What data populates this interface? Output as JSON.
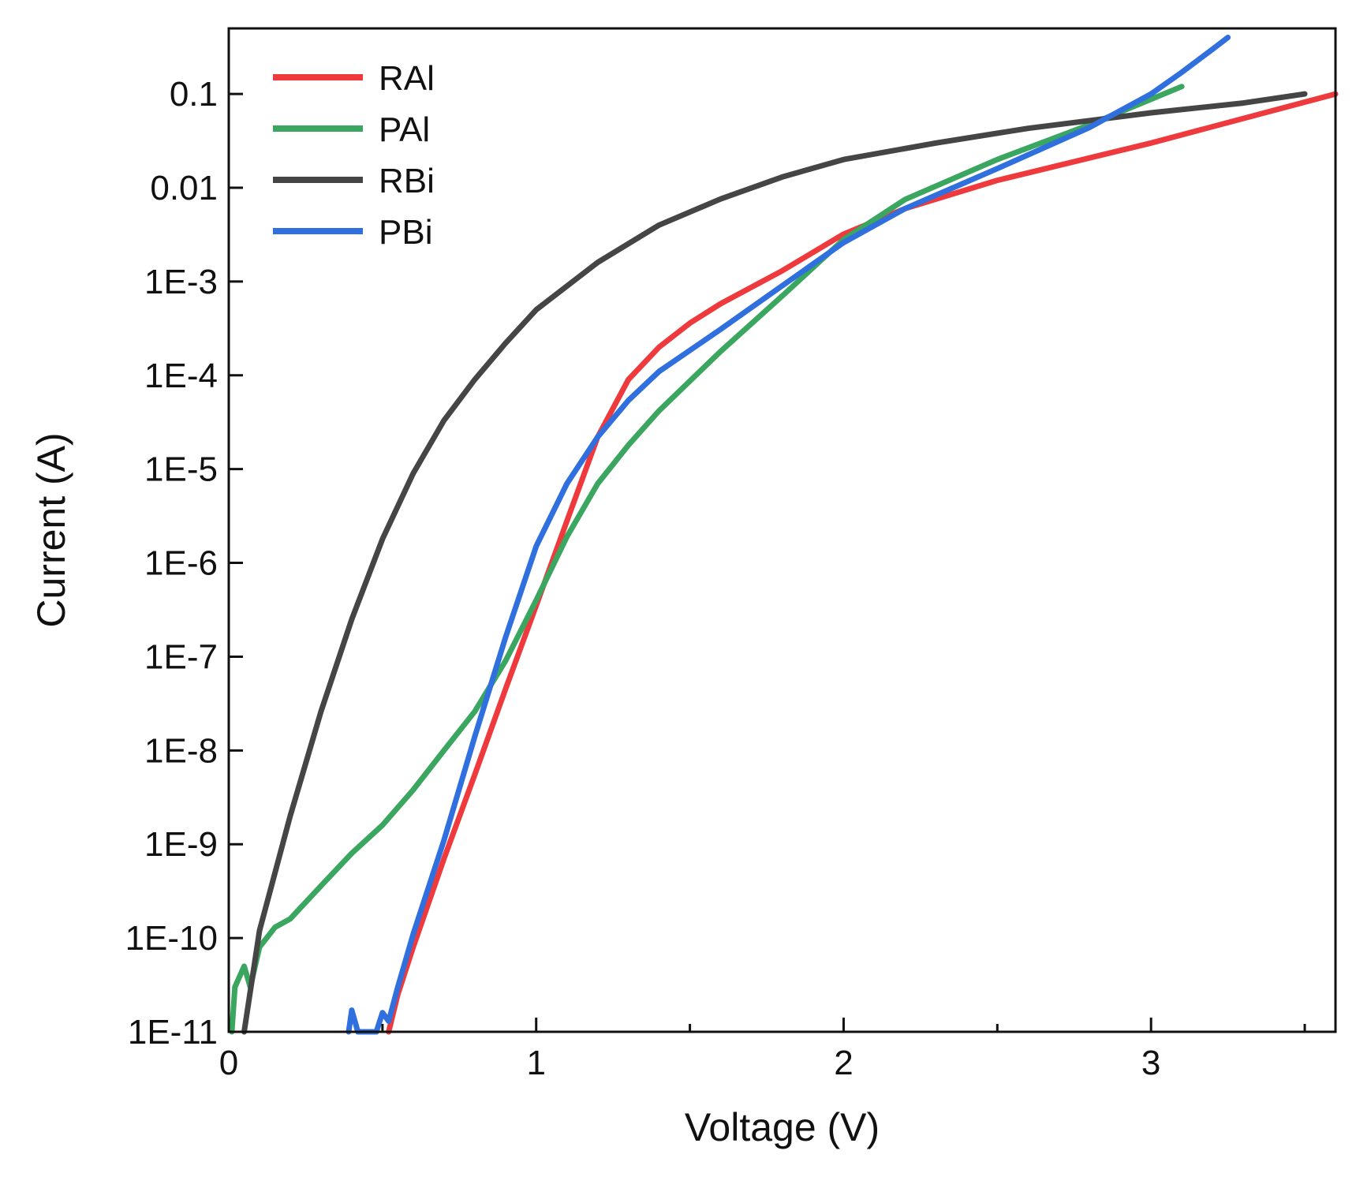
{
  "chart_data": {
    "type": "line",
    "title": "",
    "xlabel": "Voltage (V)",
    "ylabel": "Current (A)",
    "xlim": [
      0,
      3.6
    ],
    "ylim": [
      1e-11,
      0.5
    ],
    "yscale": "log",
    "grid": false,
    "legend_position": "top-left",
    "x_ticks": [
      {
        "value": 0,
        "label": "0"
      },
      {
        "value": 1,
        "label": "1"
      },
      {
        "value": 2,
        "label": "2"
      },
      {
        "value": 3,
        "label": "3"
      }
    ],
    "x_minor_ticks": [
      0.5,
      1.5,
      2.5,
      3.5
    ],
    "y_ticks": [
      {
        "value": 1e-11,
        "label": "1E-11"
      },
      {
        "value": 1e-10,
        "label": "1E-10"
      },
      {
        "value": 1e-09,
        "label": "1E-9"
      },
      {
        "value": 1e-08,
        "label": "1E-8"
      },
      {
        "value": 1e-07,
        "label": "1E-7"
      },
      {
        "value": 1e-06,
        "label": "1E-6"
      },
      {
        "value": 1e-05,
        "label": "1E-5"
      },
      {
        "value": 0.0001,
        "label": "1E-4"
      },
      {
        "value": 0.001,
        "label": "1E-3"
      },
      {
        "value": 0.01,
        "label": "0.01"
      },
      {
        "value": 0.1,
        "label": "0.1"
      }
    ],
    "series": [
      {
        "name": "RAl",
        "color": "#ee3a3c",
        "points": [
          [
            0.52,
            1e-11
          ],
          [
            0.55,
            2.5e-11
          ],
          [
            0.6,
            8e-11
          ],
          [
            0.7,
            7e-10
          ],
          [
            0.8,
            5.5e-09
          ],
          [
            0.9,
            4.5e-08
          ],
          [
            1.0,
            3.5e-07
          ],
          [
            1.1,
            2.8e-06
          ],
          [
            1.2,
            2.2e-05
          ],
          [
            1.3,
            9e-05
          ],
          [
            1.4,
            0.0002
          ],
          [
            1.5,
            0.00036
          ],
          [
            1.6,
            0.00058
          ],
          [
            1.8,
            0.0013
          ],
          [
            2.0,
            0.0032
          ],
          [
            2.2,
            0.006
          ],
          [
            2.5,
            0.012
          ],
          [
            3.0,
            0.03
          ],
          [
            3.6,
            0.1
          ]
        ]
      },
      {
        "name": "PAl",
        "color": "#3aa660",
        "points": [
          [
            0.01,
            1e-11
          ],
          [
            0.02,
            3e-11
          ],
          [
            0.05,
            5e-11
          ],
          [
            0.07,
            3e-11
          ],
          [
            0.1,
            8e-11
          ],
          [
            0.15,
            1.3e-10
          ],
          [
            0.2,
            1.6e-10
          ],
          [
            0.3,
            3.6e-10
          ],
          [
            0.4,
            8e-10
          ],
          [
            0.5,
            1.6e-09
          ],
          [
            0.6,
            3.8e-09
          ],
          [
            0.7,
            1e-08
          ],
          [
            0.8,
            2.6e-08
          ],
          [
            0.9,
            9e-08
          ],
          [
            1.0,
            4e-07
          ],
          [
            1.1,
            1.9e-06
          ],
          [
            1.2,
            7e-06
          ],
          [
            1.3,
            1.8e-05
          ],
          [
            1.4,
            4.2e-05
          ],
          [
            1.6,
            0.00018
          ],
          [
            1.8,
            0.0007
          ],
          [
            2.0,
            0.0028
          ],
          [
            2.2,
            0.0075
          ],
          [
            2.5,
            0.02
          ],
          [
            2.8,
            0.047
          ],
          [
            3.1,
            0.12
          ]
        ]
      },
      {
        "name": "RBi",
        "color": "#454545",
        "points": [
          [
            0.05,
            1e-11
          ],
          [
            0.1,
            1.2e-10
          ],
          [
            0.2,
            2e-09
          ],
          [
            0.3,
            2.6e-08
          ],
          [
            0.4,
            2.5e-07
          ],
          [
            0.5,
            1.8e-06
          ],
          [
            0.6,
            9e-06
          ],
          [
            0.7,
            3.3e-05
          ],
          [
            0.8,
            9e-05
          ],
          [
            0.9,
            0.00022
          ],
          [
            1.0,
            0.0005
          ],
          [
            1.2,
            0.0016
          ],
          [
            1.4,
            0.004
          ],
          [
            1.6,
            0.0076
          ],
          [
            1.8,
            0.013
          ],
          [
            2.0,
            0.02
          ],
          [
            2.3,
            0.03
          ],
          [
            2.6,
            0.043
          ],
          [
            3.0,
            0.063
          ],
          [
            3.3,
            0.08
          ],
          [
            3.5,
            0.1
          ]
        ]
      },
      {
        "name": "PBi",
        "color": "#2f6fde",
        "points": [
          [
            0.39,
            1e-11
          ],
          [
            0.4,
            1.7e-11
          ],
          [
            0.42,
            1e-11
          ],
          [
            0.48,
            1e-11
          ],
          [
            0.5,
            1.6e-11
          ],
          [
            0.52,
            1.3e-11
          ],
          [
            0.55,
            3e-11
          ],
          [
            0.6,
            1.1e-10
          ],
          [
            0.7,
            1.1e-09
          ],
          [
            0.8,
            1.4e-08
          ],
          [
            0.9,
            1.6e-07
          ],
          [
            1.0,
            1.5e-06
          ],
          [
            1.1,
            7e-06
          ],
          [
            1.2,
            2.2e-05
          ],
          [
            1.3,
            5.4e-05
          ],
          [
            1.4,
            0.00011
          ],
          [
            1.6,
            0.00031
          ],
          [
            1.8,
            0.0009
          ],
          [
            2.0,
            0.0026
          ],
          [
            2.2,
            0.006
          ],
          [
            2.5,
            0.016
          ],
          [
            2.8,
            0.044
          ],
          [
            3.0,
            0.1
          ],
          [
            3.1,
            0.17
          ],
          [
            3.2,
            0.3
          ],
          [
            3.25,
            0.4
          ]
        ]
      }
    ]
  }
}
